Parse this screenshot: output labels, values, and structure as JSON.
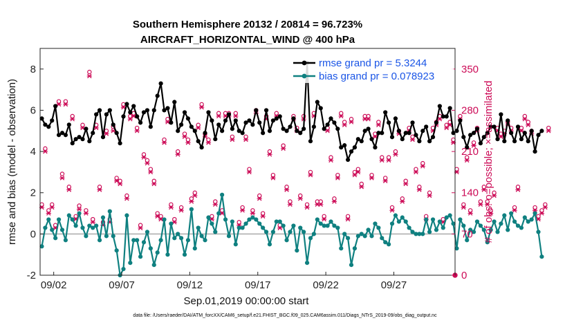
{
  "chart_data": {
    "type": "line",
    "title": "Southern Hemisphere 20132 / 20814 = 96.723%",
    "subtitle": "AIRCRAFT_HORIZONTAL_WIND @ 400 hPa",
    "xlabel": "Sep.01,2019 00:00:00 start",
    "ylabel": "rmse and bias (model - observation)",
    "ylabel_right": "# of obs: o=possible; ×=assimilated",
    "footnote": "data file: /Users/raeder/DAI/ATM_forcXX/CAM6_setup/f.e21.FHIST_BGC.f09_025.CAM6assim.011/Diags_NTrS_2019-09/obs_diag_output.nc",
    "xlim": [
      0.0,
      30.5
    ],
    "ylim": [
      -2,
      9
    ],
    "ylim_right": [
      0,
      385
    ],
    "x_ticks": [
      1,
      6,
      11,
      16,
      21,
      26
    ],
    "x_tick_labels": [
      "09/02",
      "09/07",
      "09/12",
      "09/17",
      "09/22",
      "09/27"
    ],
    "y_ticks": [
      -2,
      0,
      2,
      4,
      6,
      8
    ],
    "y_ticks_right": [
      0,
      70,
      140,
      210,
      280,
      350
    ],
    "colors": {
      "rmse": "#000000",
      "bias": "#0f8080",
      "obs": "#cc0a56",
      "zero_line": "#aaaaaa",
      "legend_text": "#1a55e6"
    },
    "legend_position": "top-right",
    "t_start": 0.125,
    "t_step": 0.25,
    "series": [
      {
        "name": "rmse grand pr = 5.3244",
        "axis": "left",
        "values": [
          5.6,
          5.3,
          5.2,
          5.5,
          6.2,
          4.8,
          4.9,
          4.8,
          5.3,
          4.4,
          4.6,
          4.7,
          4.6,
          5.1,
          4.5,
          4.9,
          5.8,
          6.0,
          4.7,
          5.8,
          6.0,
          5.3,
          4.9,
          4.4,
          5.7,
          6.3,
          5.9,
          6.2,
          5.7,
          5.4,
          5.9,
          6.0,
          5.2,
          6.0,
          6.7,
          7.3,
          6.0,
          6.1,
          5.4,
          6.4,
          5.0,
          5.3,
          5.9,
          5.6,
          5.2,
          5.0,
          4.5,
          4.2,
          4.9,
          5.9,
          5.5,
          4.6,
          5.3,
          5.0,
          5.5,
          5.8,
          5.1,
          5.5,
          5.0,
          4.9,
          5.4,
          5.5,
          5.3,
          6.0,
          5.4,
          4.9,
          6.0,
          5.0,
          5.5,
          5.6,
          5.7,
          5.1,
          5.0,
          5.2,
          5.6,
          5.0,
          4.9,
          5.1,
          8.3,
          4.5,
          5.2,
          6.4,
          6.1,
          5.1,
          5.3,
          5.6,
          5.4,
          5.1,
          4.2,
          4.3,
          3.6,
          4.0,
          4.2,
          4.6,
          4.5,
          5.0,
          5.1,
          4.6,
          4.2,
          4.9,
          4.9,
          5.9,
          5.4,
          4.7,
          5.6,
          5.0,
          4.6,
          4.9,
          4.9,
          5.4,
          4.8,
          4.5,
          5.0,
          5.2,
          4.5,
          4.7,
          5.4,
          6.2,
          5.7,
          5.7,
          6.1,
          4.9,
          5.0,
          5.5,
          4.7,
          4.2,
          4.8,
          4.9,
          5.1,
          4.4,
          4.7,
          4.9,
          5.2,
          5.2,
          4.6,
          5.8,
          4.5,
          5.5,
          4.9,
          4.5,
          5.2,
          4.6,
          4.9,
          4.5,
          5.0,
          4.0,
          4.8,
          5.0
        ]
      },
      {
        "name": "bias grand pr = 0.078923",
        "axis": "left",
        "values": [
          -0.6,
          0.3,
          0.7,
          0.2,
          -0.2,
          0.7,
          0.2,
          -0.3,
          0.9,
          0.7,
          0.4,
          1.0,
          0.3,
          -0.1,
          0.4,
          0.3,
          0.4,
          -0.3,
          0.8,
          -0.1,
          1.1,
          -0.1,
          -0.8,
          -2.0,
          -1.7,
          0.9,
          -1.4,
          -0.3,
          -0.3,
          -1.1,
          -0.4,
          0.1,
          -0.7,
          -1.5,
          -0.9,
          -0.3,
          0.7,
          -1.0,
          0.5,
          -0.2,
          0.0,
          -0.2,
          -1.0,
          -0.3,
          1.2,
          -0.7,
          0.3,
          -0.1,
          -0.3,
          0.8,
          0.5,
          0.1,
          1.0,
          1.9,
          0.7,
          -0.1,
          0.6,
          -0.5,
          0.3,
          0.3,
          0.5,
          0.7,
          0.8,
          0.7,
          0.5,
          0.3,
          0.1,
          -0.5,
          0.1,
          0.6,
          0.6,
          0.4,
          -0.3,
          0.1,
          0.4,
          -0.8,
          0.3,
          0.1,
          -1.4,
          -0.2,
          0.0,
          0.7,
          0.5,
          0.4,
          0.4,
          0.6,
          0.4,
          0.3,
          -0.7,
          0.0,
          -0.2,
          -1.5,
          -0.7,
          -0.1,
          0.0,
          -0.1,
          0.2,
          -0.1,
          0.5,
          0.3,
          -0.2,
          -0.4,
          -0.5,
          0.5,
          0.9,
          0.6,
          0.8,
          0.6,
          0.3,
          0.1,
          0.0,
          0.0,
          0.0,
          0.7,
          0.1,
          0.7,
          0.2,
          0.6,
          0.3,
          0.8,
          0.9,
          0.5,
          -0.7,
          0.7,
          0.4,
          -0.3,
          0.2,
          0.1,
          0.6,
          0.4,
          0.2,
          -0.4,
          0.2,
          0.6,
          0.1,
          0.5,
          0.9,
          0.2,
          1.0,
          0.6,
          0.4,
          0.3,
          0.8,
          0.6,
          0.7,
          1.0,
          0.1,
          -1.1
        ]
      },
      {
        "name": "obs possible",
        "axis": "right",
        "marker": "circle",
        "values": [
          120,
          215,
          110,
          120,
          85,
          295,
          172,
          295,
          150,
          270,
          100,
          118,
          255,
          110,
          345,
          95,
          255,
          150,
          90,
          245,
          95,
          252,
          165,
          160,
          290,
          135,
          270,
          275,
          250,
          85,
          205,
          195,
          180,
          160,
          105,
          100,
          230,
          265,
          120,
          95,
          210,
          115,
          240,
          230,
          130,
          140,
          255,
          290,
          240,
          230,
          100,
          125,
          275,
          110,
          275,
          275,
          235,
          275,
          90,
          115,
          235,
          180,
          110,
          280,
          135,
          105,
          270,
          210,
          170,
          275,
          85,
          220,
          150,
          125,
          270,
          250,
          135,
          270,
          120,
          175,
          275,
          125,
          125,
          100,
          250,
          200,
          130,
          170,
          275,
          260,
          100,
          265,
          175,
          180,
          155,
          270,
          270,
          170,
          240,
          260,
          200,
          165,
          200,
          115,
          210,
          245,
          130,
          160,
          250,
          235,
          180,
          150,
          190,
          100,
          140,
          250,
          260,
          270,
          95,
          255,
          260,
          230,
          180,
          270,
          120,
          200,
          110,
          225,
          250,
          125,
          150,
          125,
          110,
          140,
          250,
          240,
          245,
          260,
          250,
          115,
          150,
          250,
          270,
          260,
          245,
          115,
          100,
          110,
          120,
          250
        ]
      },
      {
        "name": "obs assimilated",
        "axis": "right",
        "marker": "x",
        "values": [
          115,
          210,
          105,
          115,
          80,
          290,
          165,
          290,
          145,
          265,
          95,
          112,
          250,
          105,
          338,
          90,
          250,
          145,
          85,
          240,
          90,
          245,
          160,
          155,
          285,
          130,
          265,
          270,
          245,
          80,
          200,
          190,
          175,
          155,
          100,
          95,
          225,
          260,
          115,
          90,
          205,
          110,
          235,
          225,
          125,
          135,
          250,
          285,
          235,
          225,
          95,
          120,
          270,
          105,
          270,
          270,
          230,
          270,
          85,
          110,
          230,
          175,
          105,
          275,
          130,
          100,
          265,
          205,
          165,
          270,
          80,
          215,
          145,
          120,
          265,
          245,
          130,
          265,
          115,
          170,
          270,
          120,
          120,
          95,
          245,
          195,
          125,
          165,
          270,
          255,
          95,
          260,
          170,
          175,
          150,
          265,
          265,
          165,
          235,
          255,
          195,
          160,
          195,
          110,
          205,
          240,
          125,
          155,
          245,
          230,
          175,
          145,
          185,
          95,
          135,
          245,
          255,
          265,
          90,
          250,
          255,
          225,
          175,
          265,
          115,
          195,
          105,
          220,
          245,
          120,
          145,
          120,
          105,
          135,
          245,
          235,
          240,
          255,
          245,
          110,
          145,
          245,
          265,
          255,
          240,
          110,
          95,
          105,
          115,
          245
        ]
      }
    ],
    "final_obs_point": {
      "x": 30.5,
      "value": 0
    }
  }
}
